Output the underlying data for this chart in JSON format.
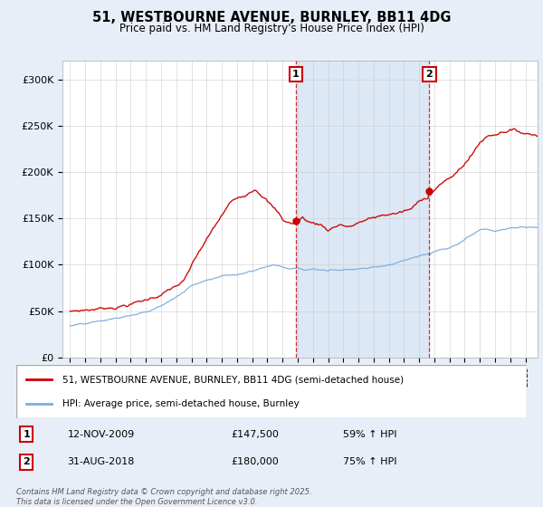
{
  "title": "51, WESTBOURNE AVENUE, BURNLEY, BB11 4DG",
  "subtitle": "Price paid vs. HM Land Registry's House Price Index (HPI)",
  "legend_line1": "51, WESTBOURNE AVENUE, BURNLEY, BB11 4DG (semi-detached house)",
  "legend_line2": "HPI: Average price, semi-detached house, Burnley",
  "marker1_date": "12-NOV-2009",
  "marker1_price": 147500,
  "marker1_label": "59% ↑ HPI",
  "marker2_date": "31-AUG-2018",
  "marker2_price": 180000,
  "marker2_label": "75% ↑ HPI",
  "copyright": "Contains HM Land Registry data © Crown copyright and database right 2025.\nThis data is licensed under the Open Government Licence v3.0.",
  "red_color": "#cc0000",
  "blue_color": "#7aade0",
  "shade_color": "#dce8f5",
  "background_color": "#e8eef8",
  "plot_bg": "#ffffff",
  "marker1_x_year": 2009.87,
  "marker2_x_year": 2018.67,
  "ylim_min": 0,
  "ylim_max": 320000,
  "xlim_min": 1994.5,
  "xlim_max": 2025.8
}
